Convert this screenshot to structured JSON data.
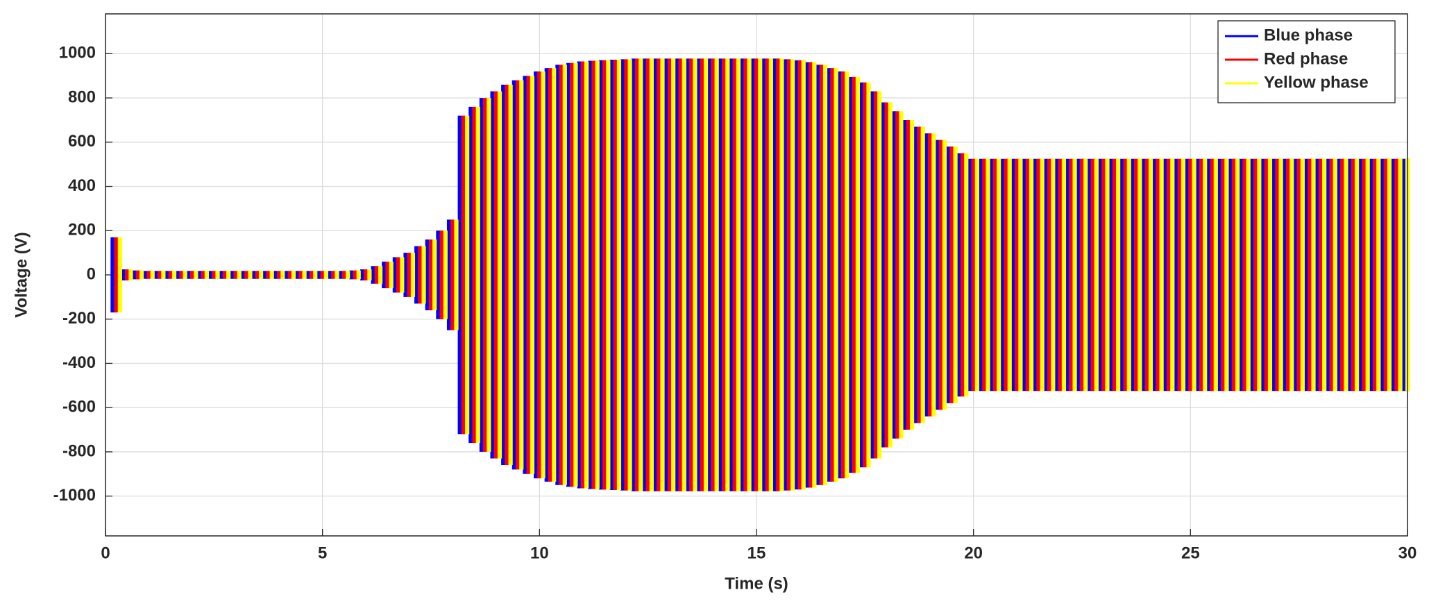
{
  "chart_data": {
    "type": "envelope-oscillation",
    "xlabel": "Time (s)",
    "ylabel": "Voltage (V)",
    "xlim": [
      0,
      30
    ],
    "xticks": [
      0,
      5,
      10,
      15,
      20,
      25,
      30
    ],
    "ylim": [
      -1180,
      1180
    ],
    "yticks": [
      -1000,
      -800,
      -600,
      -400,
      -200,
      0,
      200,
      400,
      600,
      800,
      1000
    ],
    "grid": true,
    "legend": "upper right",
    "x": [
      0,
      0.25,
      0.5,
      0.75,
      1,
      1.25,
      1.5,
      1.75,
      2,
      2.25,
      2.5,
      2.75,
      3,
      3.25,
      3.5,
      3.75,
      4,
      4.25,
      4.5,
      4.75,
      5,
      5.25,
      5.5,
      5.75,
      6,
      6.25,
      6.5,
      6.75,
      7,
      7.25,
      7.5,
      7.75,
      8,
      8.25,
      8.5,
      8.75,
      9,
      9.25,
      9.5,
      9.75,
      10,
      10.25,
      10.5,
      10.75,
      11,
      11.25,
      11.5,
      11.75,
      12,
      12.25,
      12.5,
      12.75,
      13,
      13.25,
      13.5,
      13.75,
      14,
      14.25,
      14.5,
      14.75,
      15,
      15.25,
      15.5,
      15.75,
      16,
      16.25,
      16.5,
      16.75,
      17,
      17.25,
      17.5,
      17.75,
      18,
      18.25,
      18.5,
      18.75,
      19,
      19.25,
      19.5,
      19.75,
      20,
      20.25,
      20.5,
      20.75,
      21,
      21.25,
      21.5,
      21.75,
      22,
      22.25,
      22.5,
      22.75,
      23,
      23.25,
      23.5,
      23.75,
      24,
      24.25,
      24.5,
      24.75,
      25,
      25.25,
      25.5,
      25.75,
      26,
      26.25,
      26.5,
      26.75,
      27,
      27.25,
      27.5,
      27.75,
      28,
      28.25,
      28.5,
      28.75,
      29,
      29.25,
      29.5,
      29.75,
      30
    ],
    "series": [
      {
        "name": "Blue phase",
        "color": "#0000ff",
        "values": [
          0,
          170,
          25,
          20,
          18,
          18,
          18,
          18,
          18,
          18,
          18,
          18,
          18,
          18,
          18,
          18,
          18,
          18,
          18,
          18,
          18,
          18,
          18,
          20,
          25,
          40,
          60,
          80,
          100,
          130,
          160,
          200,
          250,
          720,
          760,
          800,
          830,
          860,
          880,
          900,
          920,
          935,
          950,
          958,
          965,
          968,
          971,
          973,
          975,
          978,
          978,
          978,
          978,
          978,
          978,
          978,
          978,
          978,
          978,
          978,
          978,
          978,
          978,
          975,
          970,
          962,
          950,
          935,
          920,
          895,
          870,
          830,
          780,
          740,
          700,
          670,
          640,
          610,
          580,
          550,
          525,
          525,
          525,
          525,
          525,
          525,
          525,
          525,
          525,
          525,
          525,
          525,
          525,
          525,
          525,
          525,
          525,
          525,
          525,
          525,
          525,
          525,
          525,
          525,
          525,
          525,
          525,
          525,
          525,
          525,
          525,
          525,
          525,
          525,
          525,
          525,
          525,
          525,
          525,
          525,
          525
        ]
      },
      {
        "name": "Red phase",
        "color": "#ff0000",
        "values": [
          0,
          170,
          25,
          20,
          18,
          18,
          18,
          18,
          18,
          18,
          18,
          18,
          18,
          18,
          18,
          18,
          18,
          18,
          18,
          18,
          18,
          18,
          18,
          20,
          25,
          40,
          60,
          80,
          100,
          130,
          160,
          200,
          250,
          720,
          760,
          800,
          830,
          860,
          880,
          900,
          920,
          935,
          950,
          958,
          965,
          968,
          971,
          973,
          975,
          978,
          978,
          978,
          978,
          978,
          978,
          978,
          978,
          978,
          978,
          978,
          978,
          978,
          978,
          975,
          970,
          962,
          950,
          935,
          920,
          895,
          870,
          830,
          780,
          740,
          700,
          670,
          640,
          610,
          580,
          550,
          525,
          525,
          525,
          525,
          525,
          525,
          525,
          525,
          525,
          525,
          525,
          525,
          525,
          525,
          525,
          525,
          525,
          525,
          525,
          525,
          525,
          525,
          525,
          525,
          525,
          525,
          525,
          525,
          525,
          525,
          525,
          525,
          525,
          525,
          525,
          525,
          525,
          525,
          525,
          525,
          525
        ]
      },
      {
        "name": "Yellow phase",
        "color": "#ffff00",
        "values": [
          0,
          170,
          25,
          20,
          18,
          18,
          18,
          18,
          18,
          18,
          18,
          18,
          18,
          18,
          18,
          18,
          18,
          18,
          18,
          18,
          18,
          18,
          18,
          20,
          25,
          40,
          60,
          80,
          100,
          130,
          160,
          200,
          250,
          720,
          760,
          800,
          830,
          860,
          880,
          900,
          920,
          935,
          950,
          958,
          965,
          968,
          971,
          973,
          975,
          978,
          978,
          978,
          978,
          978,
          978,
          978,
          978,
          978,
          978,
          978,
          978,
          978,
          978,
          975,
          970,
          962,
          950,
          935,
          920,
          895,
          870,
          830,
          780,
          740,
          700,
          670,
          640,
          610,
          580,
          550,
          525,
          525,
          525,
          525,
          525,
          525,
          525,
          525,
          525,
          525,
          525,
          525,
          525,
          525,
          525,
          525,
          525,
          525,
          525,
          525,
          525,
          525,
          525,
          525,
          525,
          525,
          525,
          525,
          525,
          525,
          525,
          525,
          525,
          525,
          525,
          525,
          525,
          525,
          525,
          525,
          525
        ]
      }
    ]
  }
}
